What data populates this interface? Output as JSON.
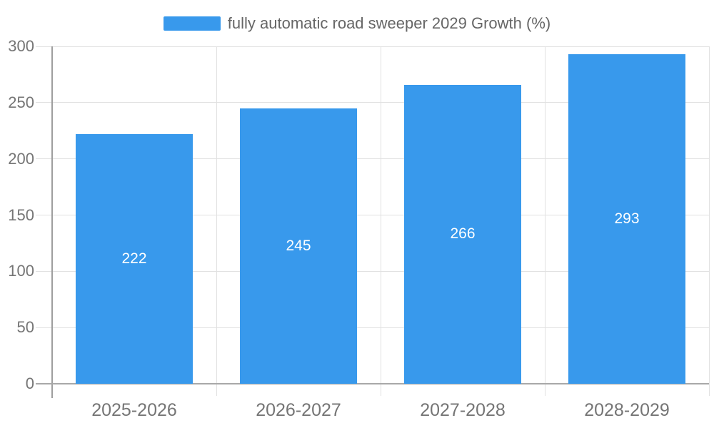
{
  "chart_data": {
    "type": "bar",
    "title": "",
    "categories": [
      "2025-2026",
      "2026-2027",
      "2027-2028",
      "2028-2029"
    ],
    "series": [
      {
        "name": "fully automatic road sweeper 2029 Growth (%)",
        "values": [
          222,
          245,
          266,
          293
        ],
        "color": "#3899EC"
      }
    ],
    "yticks": [
      0,
      50,
      100,
      150,
      200,
      250,
      300
    ],
    "ylim": [
      0,
      300
    ],
    "ytick_step": 50,
    "grid": true,
    "legend_position": "top-center",
    "value_labels": {
      "show": true,
      "position": "inside-center",
      "color": "#FFFFFF"
    }
  },
  "legend": {
    "label": "fully automatic road sweeper 2029 Growth (%)",
    "swatch_color": "#3899EC"
  },
  "colors": {
    "background": "#FFFFFF",
    "bar": "#3899EC",
    "grid_line": "#E1E1E1",
    "axis_line_x": "#A8A8A8",
    "axis_line_y": "#9E9E9E",
    "axis_text": "#757575",
    "legend_text": "#666666",
    "value_label_text": "#FFFFFF"
  }
}
